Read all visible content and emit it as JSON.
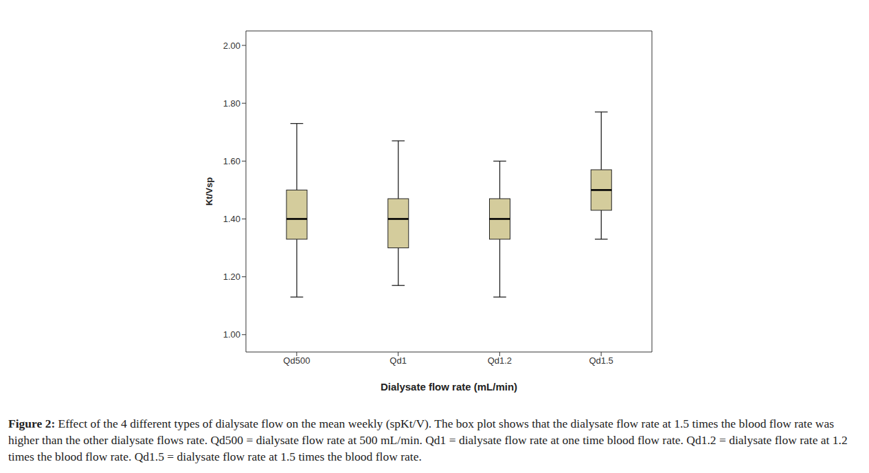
{
  "chart_data": {
    "type": "box",
    "x_label": "Dialysate flow rate (mL/min)",
    "y_label": "Kt/Vsp",
    "categories": [
      "Qd500",
      "Qd1",
      "Qd1.2",
      "Qd1.5"
    ],
    "min": [
      1.13,
      1.17,
      1.13,
      1.33
    ],
    "q1": [
      1.33,
      1.3,
      1.33,
      1.43
    ],
    "median": [
      1.4,
      1.4,
      1.4,
      1.5
    ],
    "q3": [
      1.5,
      1.47,
      1.47,
      1.57
    ],
    "max": [
      1.73,
      1.67,
      1.6,
      1.77
    ],
    "color": "#d4cc9c",
    "ylim": [
      0.94,
      2.05
    ],
    "yticks": [
      {
        "value": 1,
        "label": "1.00"
      },
      {
        "value": 1.2,
        "label": "1.20"
      },
      {
        "value": 1.4,
        "label": "1.40"
      },
      {
        "value": 1.6,
        "label": "1.60"
      },
      {
        "value": 1.8,
        "label": "1.80"
      },
      {
        "value": 2,
        "label": "2.00"
      }
    ],
    "grid": false
  },
  "caption": {
    "label": "Figure 2:",
    "text": "Effect of the 4 different types of dialysate flow on the mean weekly (spKt/V). The box plot shows that the dialysate flow rate at 1.5 times the blood flow rate was higher than the other dialysate flows rate. Qd500 = dialysate flow rate at 500 mL/min. Qd1 = dialysate flow rate at one time blood flow rate. Qd1.2 = dialysate flow rate at 1.2 times the blood flow rate. Qd1.5 = dialysate flow rate at 1.5 times the blood flow rate."
  }
}
